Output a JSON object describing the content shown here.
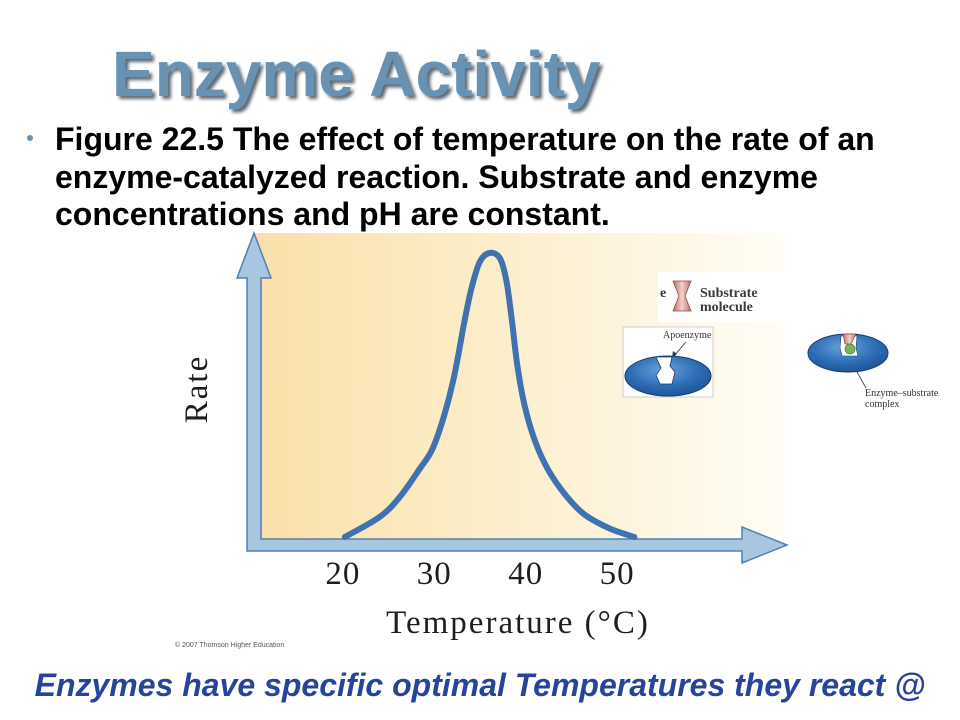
{
  "slide": {
    "title": "Enzyme Activity",
    "caption_lines": [
      "Figure 22.5 The effect of temperature on the rate of an",
      "enzyme-catalyzed reaction. Substrate and enzyme",
      "concentrations and pH are constant."
    ],
    "copyright": "© 2007 Thomson Higher Education",
    "footer_note": "Enzymes have specific optimal Temperatures they react @"
  },
  "illustrations": {
    "cropped_label_fragment": "e",
    "substrate_label": [
      "Substrate",
      "molecule"
    ],
    "apoenzyme_label": "Apoenzyme",
    "complex_label": [
      "Enzyme–substrate",
      "complex"
    ]
  },
  "colors": {
    "title": "#6892b3",
    "bullet": "#6892b3",
    "footer_note": "#26449a",
    "curve": "#3f72b0",
    "axes": "#a8c6e0",
    "enzyme": "#2f6fb8",
    "substrate": "#d9938a",
    "background_gradient": [
      "#f9e0a9",
      "#fffdf6"
    ]
  },
  "chart_data": {
    "type": "line",
    "title": "",
    "xlabel": "Temperature (°C)",
    "ylabel": "Rate",
    "xticks": [
      20,
      30,
      40,
      50
    ],
    "xlim": [
      9.5,
      68.6
    ],
    "ylim": [
      0,
      1.07
    ],
    "grid": false,
    "legend": "none",
    "x": [
      20.2,
      24.0,
      26.2,
      28.4,
      29.8,
      31.1,
      32.2,
      33.3,
      34.1,
      35.0,
      36.1,
      37.2,
      37.9,
      38.5,
      39.1,
      39.9,
      41.0,
      42.4,
      44.3,
      46.4,
      49.2,
      51.9
    ],
    "series": [
      {
        "values": [
          0,
          0.07,
          0.14,
          0.24,
          0.31,
          0.43,
          0.57,
          0.76,
          0.88,
          0.97,
          1.0,
          0.98,
          0.9,
          0.76,
          0.6,
          0.46,
          0.34,
          0.24,
          0.15,
          0.08,
          0.03,
          0
        ]
      }
    ]
  }
}
